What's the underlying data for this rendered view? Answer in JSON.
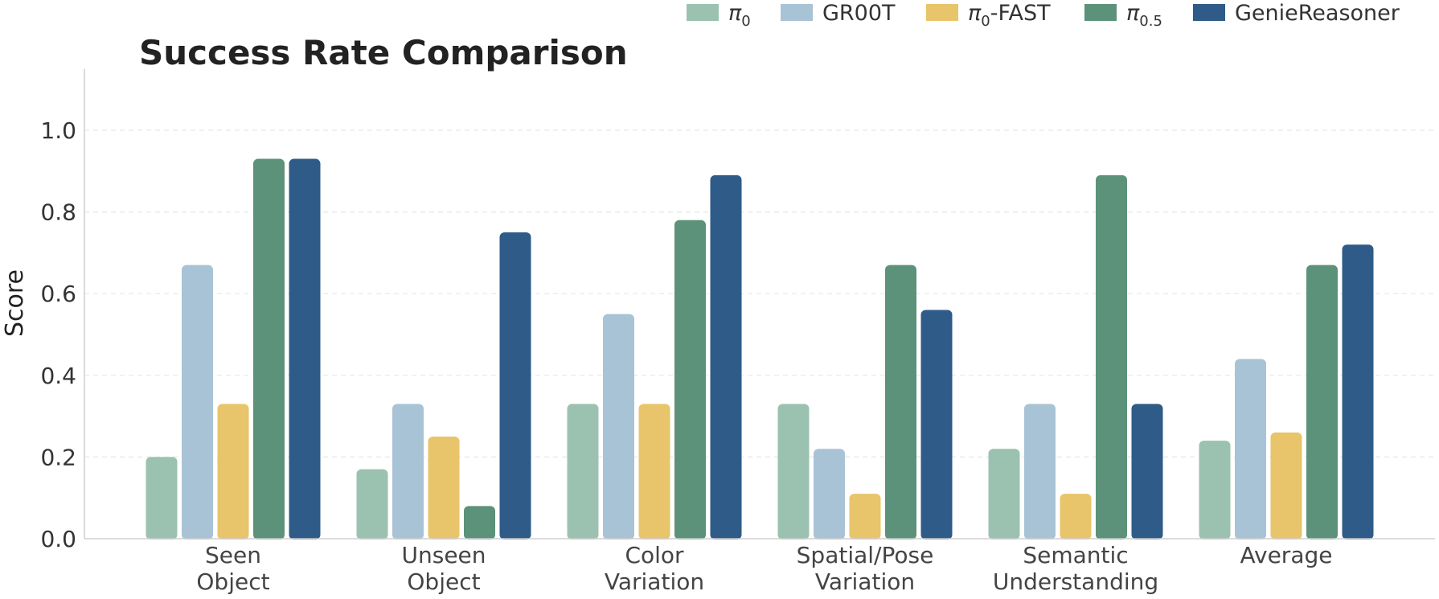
{
  "chart_data": {
    "type": "bar",
    "title": "Success Rate Comparison",
    "xlabel": "",
    "ylabel": "Score",
    "ylim": [
      0,
      1.15
    ],
    "yticks": [
      "0.0",
      "0.2",
      "0.4",
      "0.6",
      "0.8",
      "1.0"
    ],
    "grid": true,
    "legend_position": "top-right",
    "categories": [
      [
        "Seen",
        "Object"
      ],
      [
        "Unseen",
        "Object"
      ],
      [
        "Color",
        "Variation"
      ],
      [
        "Spatial/Pose",
        "Variation"
      ],
      [
        "Semantic",
        "Understanding"
      ],
      [
        "Average"
      ]
    ],
    "series": [
      {
        "name": "π0",
        "name_base": "π",
        "name_sub": "0",
        "name_suffix": "",
        "color": "#9bc2b0",
        "values": [
          0.2,
          0.17,
          0.33,
          0.33,
          0.22,
          0.24
        ]
      },
      {
        "name": "GR00T",
        "name_base": "GR00T",
        "name_sub": "",
        "name_suffix": "",
        "color": "#a9c3d6",
        "values": [
          0.67,
          0.33,
          0.55,
          0.22,
          0.33,
          0.44
        ]
      },
      {
        "name": "π0-FAST",
        "name_base": "π",
        "name_sub": "0",
        "name_suffix": "-FAST",
        "color": "#e8c46a",
        "values": [
          0.33,
          0.25,
          0.33,
          0.11,
          0.11,
          0.26
        ]
      },
      {
        "name": "π0.5",
        "name_base": "π",
        "name_sub": "0.5",
        "name_suffix": "",
        "color": "#5b9279",
        "values": [
          0.93,
          0.08,
          0.78,
          0.67,
          0.89,
          0.67
        ]
      },
      {
        "name": "GenieReasoner",
        "name_base": "GenieReasoner",
        "name_sub": "",
        "name_suffix": "",
        "color": "#2e5b88",
        "values": [
          0.93,
          0.75,
          0.89,
          0.56,
          0.33,
          0.72
        ]
      }
    ]
  }
}
